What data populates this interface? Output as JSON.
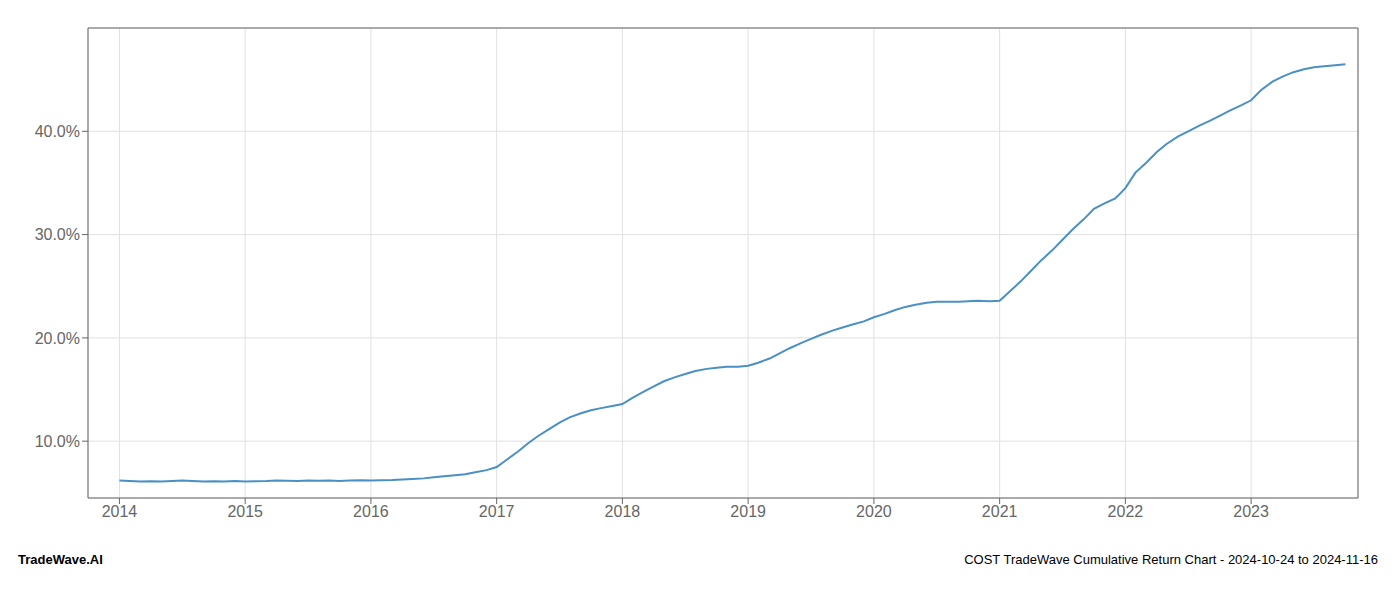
{
  "chart_data": {
    "type": "line",
    "x": [
      2014.0,
      2014.08,
      2014.17,
      2014.25,
      2014.33,
      2014.42,
      2014.5,
      2014.58,
      2014.67,
      2014.75,
      2014.83,
      2014.92,
      2015.0,
      2015.08,
      2015.17,
      2015.25,
      2015.33,
      2015.42,
      2015.5,
      2015.58,
      2015.67,
      2015.75,
      2015.83,
      2015.92,
      2016.0,
      2016.08,
      2016.17,
      2016.25,
      2016.33,
      2016.42,
      2016.5,
      2016.58,
      2016.67,
      2016.75,
      2016.83,
      2016.92,
      2017.0,
      2017.08,
      2017.17,
      2017.25,
      2017.33,
      2017.42,
      2017.5,
      2017.58,
      2017.67,
      2017.75,
      2017.83,
      2017.92,
      2018.0,
      2018.08,
      2018.17,
      2018.25,
      2018.33,
      2018.42,
      2018.5,
      2018.58,
      2018.67,
      2018.75,
      2018.83,
      2018.92,
      2019.0,
      2019.08,
      2019.17,
      2019.25,
      2019.33,
      2019.42,
      2019.5,
      2019.58,
      2019.67,
      2019.75,
      2019.83,
      2019.92,
      2020.0,
      2020.08,
      2020.17,
      2020.25,
      2020.33,
      2020.42,
      2020.5,
      2020.58,
      2020.67,
      2020.75,
      2020.83,
      2020.92,
      2021.0,
      2021.08,
      2021.17,
      2021.25,
      2021.33,
      2021.42,
      2021.5,
      2021.58,
      2021.67,
      2021.75,
      2021.83,
      2021.92,
      2022.0,
      2022.08,
      2022.17,
      2022.25,
      2022.33,
      2022.42,
      2022.5,
      2022.58,
      2022.67,
      2022.75,
      2022.83,
      2022.92,
      2023.0,
      2023.08,
      2023.17,
      2023.25,
      2023.33,
      2023.42,
      2023.5,
      2023.58,
      2023.67,
      2023.75
    ],
    "values": [
      6.2,
      6.15,
      6.1,
      6.12,
      6.1,
      6.15,
      6.2,
      6.15,
      6.1,
      6.12,
      6.1,
      6.15,
      6.1,
      6.12,
      6.15,
      6.2,
      6.18,
      6.15,
      6.2,
      6.18,
      6.2,
      6.15,
      6.2,
      6.22,
      6.2,
      6.22,
      6.25,
      6.3,
      6.35,
      6.4,
      6.5,
      6.6,
      6.7,
      6.8,
      7.0,
      7.2,
      7.5,
      8.2,
      9.0,
      9.8,
      10.5,
      11.2,
      11.8,
      12.3,
      12.7,
      13.0,
      13.2,
      13.4,
      13.6,
      14.2,
      14.8,
      15.3,
      15.8,
      16.2,
      16.5,
      16.8,
      17.0,
      17.1,
      17.2,
      17.2,
      17.3,
      17.6,
      18.0,
      18.5,
      19.0,
      19.5,
      19.9,
      20.3,
      20.7,
      21.0,
      21.3,
      21.6,
      22.0,
      22.3,
      22.7,
      23.0,
      23.2,
      23.4,
      23.5,
      23.5,
      23.5,
      23.55,
      23.6,
      23.55,
      23.6,
      24.5,
      25.5,
      26.5,
      27.5,
      28.5,
      29.5,
      30.5,
      31.5,
      32.5,
      33.0,
      33.5,
      34.5,
      36.0,
      37.0,
      38.0,
      38.8,
      39.5,
      40.0,
      40.5,
      41.0,
      41.5,
      42.0,
      42.5,
      43.0,
      44.0,
      44.8,
      45.3,
      45.7,
      46.0,
      46.2,
      46.3,
      46.4,
      46.5
    ],
    "color": "#4a90c4",
    "xlim": [
      2013.75,
      2023.85
    ],
    "xticks": [
      2014,
      2015,
      2016,
      2017,
      2018,
      2019,
      2020,
      2021,
      2022,
      2023
    ],
    "ylim": [
      4.5,
      50.0
    ],
    "yticks": [
      {
        "value": 10.0,
        "label": "10.0%"
      },
      {
        "value": 20.0,
        "label": "20.0%"
      },
      {
        "value": 30.0,
        "label": "30.0%"
      },
      {
        "value": 40.0,
        "label": "40.0%"
      }
    ],
    "grid": true,
    "annotations": [
      "TradeWave.AI",
      "COST TradeWave Cumulative Return Chart - 2024-10-24 to 2024-11-16"
    ]
  }
}
